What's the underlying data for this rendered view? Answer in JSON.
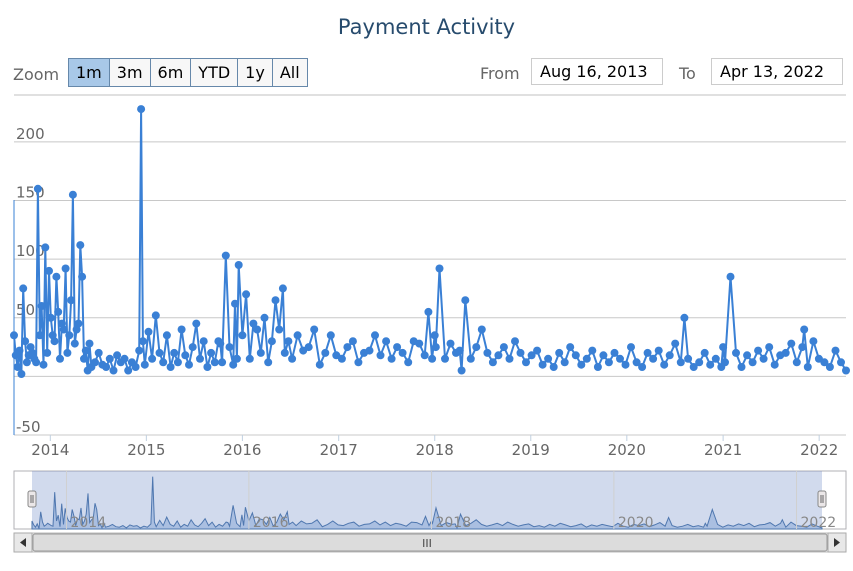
{
  "chart_data": {
    "type": "line",
    "title": "Payment Activity",
    "ylim": [
      -50,
      240
    ],
    "y_ticks": [
      -50,
      0,
      50,
      100,
      150,
      200
    ],
    "y_tick_labels": [
      "-50",
      "",
      "50",
      "100",
      "150",
      "200"
    ],
    "x_ticks": [
      "2014",
      "2015",
      "2016",
      "2017",
      "2018",
      "2019",
      "2020",
      "2021",
      "2022"
    ],
    "navigator_labels": [
      "2014",
      "2016",
      "2018",
      "2020",
      "2022"
    ],
    "grid": true,
    "series": [
      {
        "color": "#3a80d5",
        "x": [
          "2013-08-16",
          "2013-08-23",
          "2013-08-30",
          "2013-09-06",
          "2013-09-13",
          "2013-09-20",
          "2013-09-27",
          "2013-10-04",
          "2013-10-11",
          "2013-10-18",
          "2013-10-25",
          "2013-11-01",
          "2013-11-08",
          "2013-11-15",
          "2013-11-22",
          "2013-11-29",
          "2013-12-06",
          "2013-12-13",
          "2013-12-20",
          "2013-12-27",
          "2014-01-03",
          "2014-01-10",
          "2014-01-17",
          "2014-01-24",
          "2014-01-31",
          "2014-02-07",
          "2014-02-14",
          "2014-02-21",
          "2014-02-28",
          "2014-03-07",
          "2014-03-14",
          "2014-03-21",
          "2014-03-28",
          "2014-04-04",
          "2014-04-11",
          "2014-04-18",
          "2014-04-25",
          "2014-05-02",
          "2014-05-09",
          "2014-05-16",
          "2014-05-23",
          "2014-05-30",
          "2014-06-06",
          "2014-06-20",
          "2014-07-04",
          "2014-07-18",
          "2014-08-01",
          "2014-08-15",
          "2014-08-29",
          "2014-09-12",
          "2014-09-26",
          "2014-10-10",
          "2014-10-24",
          "2014-11-07",
          "2014-11-21",
          "2014-12-05",
          "2014-12-12",
          "2014-12-19",
          "2014-12-26",
          "2015-01-09",
          "2015-01-23",
          "2015-02-06",
          "2015-02-20",
          "2015-03-06",
          "2015-03-20",
          "2015-04-03",
          "2015-04-17",
          "2015-05-01",
          "2015-05-15",
          "2015-05-29",
          "2015-06-12",
          "2015-06-26",
          "2015-07-10",
          "2015-07-24",
          "2015-08-07",
          "2015-08-21",
          "2015-09-04",
          "2015-09-18",
          "2015-10-02",
          "2015-10-09",
          "2015-10-16",
          "2015-10-30",
          "2015-11-13",
          "2015-11-27",
          "2015-12-04",
          "2015-12-11",
          "2015-12-18",
          "2016-01-01",
          "2016-01-15",
          "2016-01-29",
          "2016-02-12",
          "2016-02-26",
          "2016-03-11",
          "2016-03-25",
          "2016-04-08",
          "2016-04-22",
          "2016-05-06",
          "2016-05-20",
          "2016-06-03",
          "2016-06-10",
          "2016-06-24",
          "2016-07-08",
          "2016-07-29",
          "2016-08-19",
          "2016-09-09",
          "2016-09-30",
          "2016-10-21",
          "2016-11-11",
          "2016-12-02",
          "2016-12-23",
          "2017-01-13",
          "2017-02-03",
          "2017-02-24",
          "2017-03-17",
          "2017-04-07",
          "2017-04-28",
          "2017-05-19",
          "2017-06-09",
          "2017-06-30",
          "2017-07-21",
          "2017-08-11",
          "2017-09-01",
          "2017-09-22",
          "2017-10-13",
          "2017-11-03",
          "2017-11-24",
          "2017-12-08",
          "2017-12-22",
          "2018-01-01",
          "2018-01-05",
          "2018-01-19",
          "2018-02-09",
          "2018-03-02",
          "2018-03-23",
          "2018-04-06",
          "2018-04-13",
          "2018-04-27",
          "2018-05-18",
          "2018-06-08",
          "2018-06-29",
          "2018-07-20",
          "2018-08-10",
          "2018-08-31",
          "2018-09-21",
          "2018-10-12",
          "2018-11-02",
          "2018-11-23",
          "2018-12-14",
          "2019-01-04",
          "2019-01-25",
          "2019-02-15",
          "2019-03-08",
          "2019-03-29",
          "2019-04-19",
          "2019-05-10",
          "2019-05-31",
          "2019-06-21",
          "2019-07-12",
          "2019-08-02",
          "2019-08-23",
          "2019-09-13",
          "2019-10-04",
          "2019-10-25",
          "2019-11-15",
          "2019-12-06",
          "2019-12-27",
          "2020-01-17",
          "2020-02-07",
          "2020-02-28",
          "2020-03-20",
          "2020-04-10",
          "2020-05-01",
          "2020-05-22",
          "2020-06-12",
          "2020-07-03",
          "2020-07-24",
          "2020-08-07",
          "2020-08-21",
          "2020-09-11",
          "2020-10-02",
          "2020-10-23",
          "2020-11-13",
          "2020-12-04",
          "2020-12-25",
          "2021-01-01",
          "2021-01-08",
          "2021-01-29",
          "2021-02-19",
          "2021-03-12",
          "2021-04-02",
          "2021-04-23",
          "2021-05-14",
          "2021-06-04",
          "2021-06-25",
          "2021-07-16",
          "2021-08-06",
          "2021-08-27",
          "2021-09-17",
          "2021-10-08",
          "2021-10-29",
          "2021-11-05",
          "2021-11-19",
          "2021-12-10",
          "2021-12-31",
          "2022-01-21",
          "2022-02-11",
          "2022-03-04",
          "2022-03-25",
          "2022-04-13"
        ],
        "y": [
          35,
          18,
          8,
          22,
          2,
          75,
          30,
          12,
          18,
          25,
          20,
          15,
          12,
          160,
          35,
          60,
          10,
          110,
          20,
          90,
          50,
          35,
          30,
          85,
          55,
          15,
          45,
          40,
          92,
          20,
          35,
          65,
          155,
          28,
          40,
          45,
          112,
          85,
          15,
          22,
          5,
          28,
          8,
          12,
          20,
          10,
          8,
          15,
          5,
          18,
          12,
          15,
          5,
          12,
          8,
          22,
          228,
          30,
          10,
          38,
          15,
          52,
          20,
          12,
          35,
          8,
          20,
          12,
          40,
          18,
          10,
          25,
          45,
          15,
          30,
          8,
          20,
          12,
          30,
          28,
          12,
          103,
          25,
          10,
          62,
          15,
          95,
          35,
          70,
          15,
          45,
          40,
          20,
          50,
          12,
          30,
          65,
          40,
          75,
          20,
          30,
          15,
          35,
          22,
          25,
          40,
          10,
          20,
          35,
          18,
          15,
          25,
          30,
          12,
          20,
          22,
          35,
          18,
          30,
          15,
          25,
          20,
          12,
          30,
          28,
          18,
          55,
          15,
          35,
          25,
          92,
          15,
          28,
          20,
          22,
          5,
          65,
          15,
          25,
          40,
          20,
          12,
          18,
          25,
          15,
          30,
          20,
          12,
          18,
          22,
          10,
          15,
          8,
          20,
          12,
          25,
          18,
          10,
          15,
          22,
          8,
          18,
          12,
          20,
          15,
          10,
          25,
          12,
          8,
          20,
          15,
          22,
          10,
          18,
          28,
          12,
          50,
          15,
          8,
          12,
          20,
          10,
          15,
          8,
          25,
          12,
          85,
          20,
          8,
          18,
          12,
          22,
          15,
          25,
          10,
          18,
          20,
          28,
          12,
          25,
          40,
          8,
          30,
          15,
          12,
          8,
          22,
          12,
          5
        ]
      }
    ]
  },
  "toolbar": {
    "zoom_label": "Zoom",
    "zoom_buttons": [
      "1m",
      "3m",
      "6m",
      "YTD",
      "1y",
      "All"
    ],
    "from_label": "From",
    "from_value": "Aug 16, 2013",
    "to_label": "To",
    "to_value": "Apr 13, 2022"
  },
  "scrollbar": {
    "grip": "III"
  }
}
